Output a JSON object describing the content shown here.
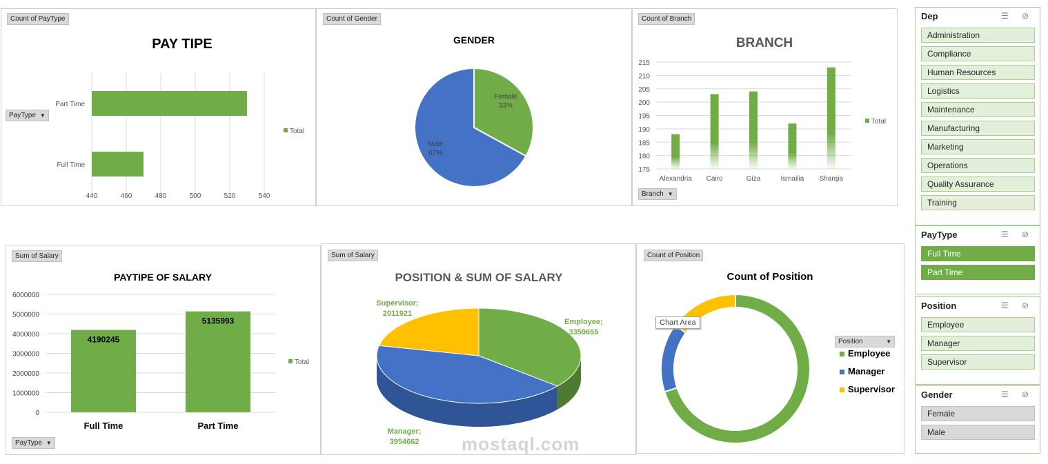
{
  "colors": {
    "green": "#70ad47",
    "blue": "#4472c4",
    "yellow": "#ffc000",
    "grid": "#d9d9d9",
    "text": "#595959"
  },
  "paytype_chart": {
    "field_tag": "Count of PayType",
    "filter_label": "PayType",
    "chart_data": {
      "type": "bar",
      "title": "PAY TIPE",
      "categories": [
        "Full Time",
        "Part Time"
      ],
      "series": [
        {
          "name": "Total",
          "values": [
            470,
            530
          ]
        }
      ],
      "xlim": [
        440,
        540
      ],
      "xticks": [
        "440",
        "460",
        "480",
        "500",
        "520",
        "540"
      ],
      "legend": "right"
    }
  },
  "gender_chart": {
    "field_tag": "Count of Gender",
    "chart_data": {
      "type": "pie",
      "title": "GENDER",
      "categories": [
        "Female",
        "Male"
      ],
      "values": [
        33,
        67
      ],
      "labels": [
        "33%",
        "67%"
      ]
    }
  },
  "branch_chart": {
    "field_tag": "Count of Branch",
    "filter_label": "Branch",
    "chart_data": {
      "type": "bar",
      "title": "BRANCH",
      "categories": [
        "Alexandria",
        "Cairo",
        "Giza",
        "Ismailia",
        "Sharqia"
      ],
      "series": [
        {
          "name": "Total",
          "values": [
            188,
            203,
            204,
            192,
            213
          ]
        }
      ],
      "ylim": [
        175,
        215
      ],
      "yticks": [
        "175",
        "180",
        "185",
        "190",
        "195",
        "200",
        "205",
        "210",
        "215"
      ],
      "legend": "right"
    }
  },
  "salary_paytype_chart": {
    "field_tag": "Sum of Salary",
    "filter_label": "PayType",
    "chart_data": {
      "type": "bar",
      "title": "PAYTIPE OF SALARY",
      "categories": [
        "Full Time",
        "Part Time"
      ],
      "series": [
        {
          "name": "Total",
          "values": [
            4190245,
            5135993
          ]
        }
      ],
      "value_labels": [
        "4190245",
        "5135993"
      ],
      "ylim": [
        0,
        6000000
      ],
      "yticks": [
        "0",
        "1000000",
        "2000000",
        "3000000",
        "4000000",
        "5000000",
        "6000000"
      ],
      "legend": "right"
    }
  },
  "position_salary_chart": {
    "field_tag": "Sum of Salary",
    "chart_data": {
      "type": "pie",
      "title": "POSITION & SUM OF SALARY",
      "categories": [
        "Employee",
        "Manager",
        "Supervisor"
      ],
      "values": [
        3359655,
        3954662,
        2011921
      ],
      "label_lines": [
        [
          "Employee;",
          "3359655"
        ],
        [
          "Manager;",
          "3954662"
        ],
        [
          "Supervisor;",
          "2011921"
        ]
      ]
    }
  },
  "position_count_chart": {
    "field_tag": "Count of Position",
    "filter_label": "Position",
    "tooltip": "Chart Area",
    "chart_data": {
      "type": "pie",
      "title": "Count of Position",
      "categories": [
        "Employee",
        "Manager",
        "Supervisor"
      ],
      "values": [
        70,
        15,
        15
      ],
      "legend": "right"
    }
  },
  "slicers": {
    "dep": {
      "title": "Dep",
      "items": [
        "Administration",
        "Compliance",
        "Human Resources",
        "Logistics",
        "Maintenance",
        "Manufacturing",
        "Marketing",
        "Operations",
        "Quality Assurance",
        "Training"
      ]
    },
    "paytype": {
      "title": "PayType",
      "items": [
        "Full Time",
        "Part Time"
      ]
    },
    "position": {
      "title": "Position",
      "items": [
        "Employee",
        "Manager",
        "Supervisor"
      ]
    },
    "gender": {
      "title": "Gender",
      "items": [
        "Female",
        "Male"
      ]
    }
  },
  "watermark": "mostaql.com"
}
